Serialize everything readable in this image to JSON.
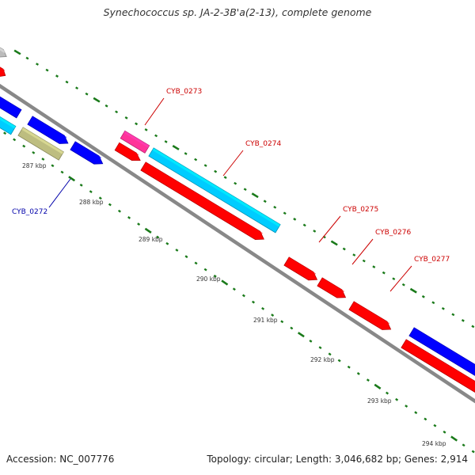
{
  "title": "Synechococcus sp. JA-2-3B'a(2-13), complete genome",
  "footer": {
    "accession": "Accession: NC_007776",
    "summary": "Topology: circular; Length: 3,046,682 bp; Genes: 2,914"
  },
  "colors": {
    "backbone": "#888888",
    "tick": "#1a7a1a",
    "forward_cds": "#ff0000",
    "reverse_cds": "#0000ff",
    "rna": "#00ccff",
    "other": "#ff3399",
    "pseudo": "#bdbd80",
    "unknown": "#bbbbbb",
    "label_forward": "#cc0000",
    "label_reverse": "#0000aa"
  },
  "scale_labels": [
    "287 kbp",
    "288 kbp",
    "289 kbp",
    "290 kbp",
    "291 kbp",
    "292 kbp",
    "293 kbp",
    "294 kbp"
  ],
  "features": [
    {
      "name": "feature-gray",
      "color_key": "unknown"
    },
    {
      "name": "feature-red-top",
      "color_key": "forward_cds"
    },
    {
      "name": "feature-blue-1",
      "color_key": "reverse_cds"
    },
    {
      "name": "feature-cyan-1",
      "color_key": "rna"
    },
    {
      "name": "feature-blue-2",
      "color_key": "reverse_cds"
    },
    {
      "name": "feature-olive",
      "color_key": "pseudo"
    },
    {
      "name": "feature-blue-3",
      "color_key": "reverse_cds"
    },
    {
      "name": "feature-pink",
      "color_key": "other"
    },
    {
      "name": "feature-red-small",
      "color_key": "forward_cds"
    },
    {
      "name": "feature-cyan-long",
      "color_key": "rna"
    },
    {
      "name": "feature-red-long",
      "color_key": "forward_cds"
    },
    {
      "name": "feature-red-275",
      "color_key": "forward_cds"
    },
    {
      "name": "feature-red-276",
      "color_key": "forward_cds"
    },
    {
      "name": "feature-red-277",
      "color_key": "forward_cds"
    },
    {
      "name": "feature-blue-end",
      "color_key": "reverse_cds"
    },
    {
      "name": "feature-red-end",
      "color_key": "forward_cds"
    }
  ],
  "gene_labels": [
    {
      "text": "CYB_0273",
      "strand": "forward"
    },
    {
      "text": "CYB_0274",
      "strand": "forward"
    },
    {
      "text": "CYB_0275",
      "strand": "forward"
    },
    {
      "text": "CYB_0276",
      "strand": "forward"
    },
    {
      "text": "CYB_0277",
      "strand": "forward"
    },
    {
      "text": "CYB_0272",
      "strand": "reverse"
    }
  ]
}
